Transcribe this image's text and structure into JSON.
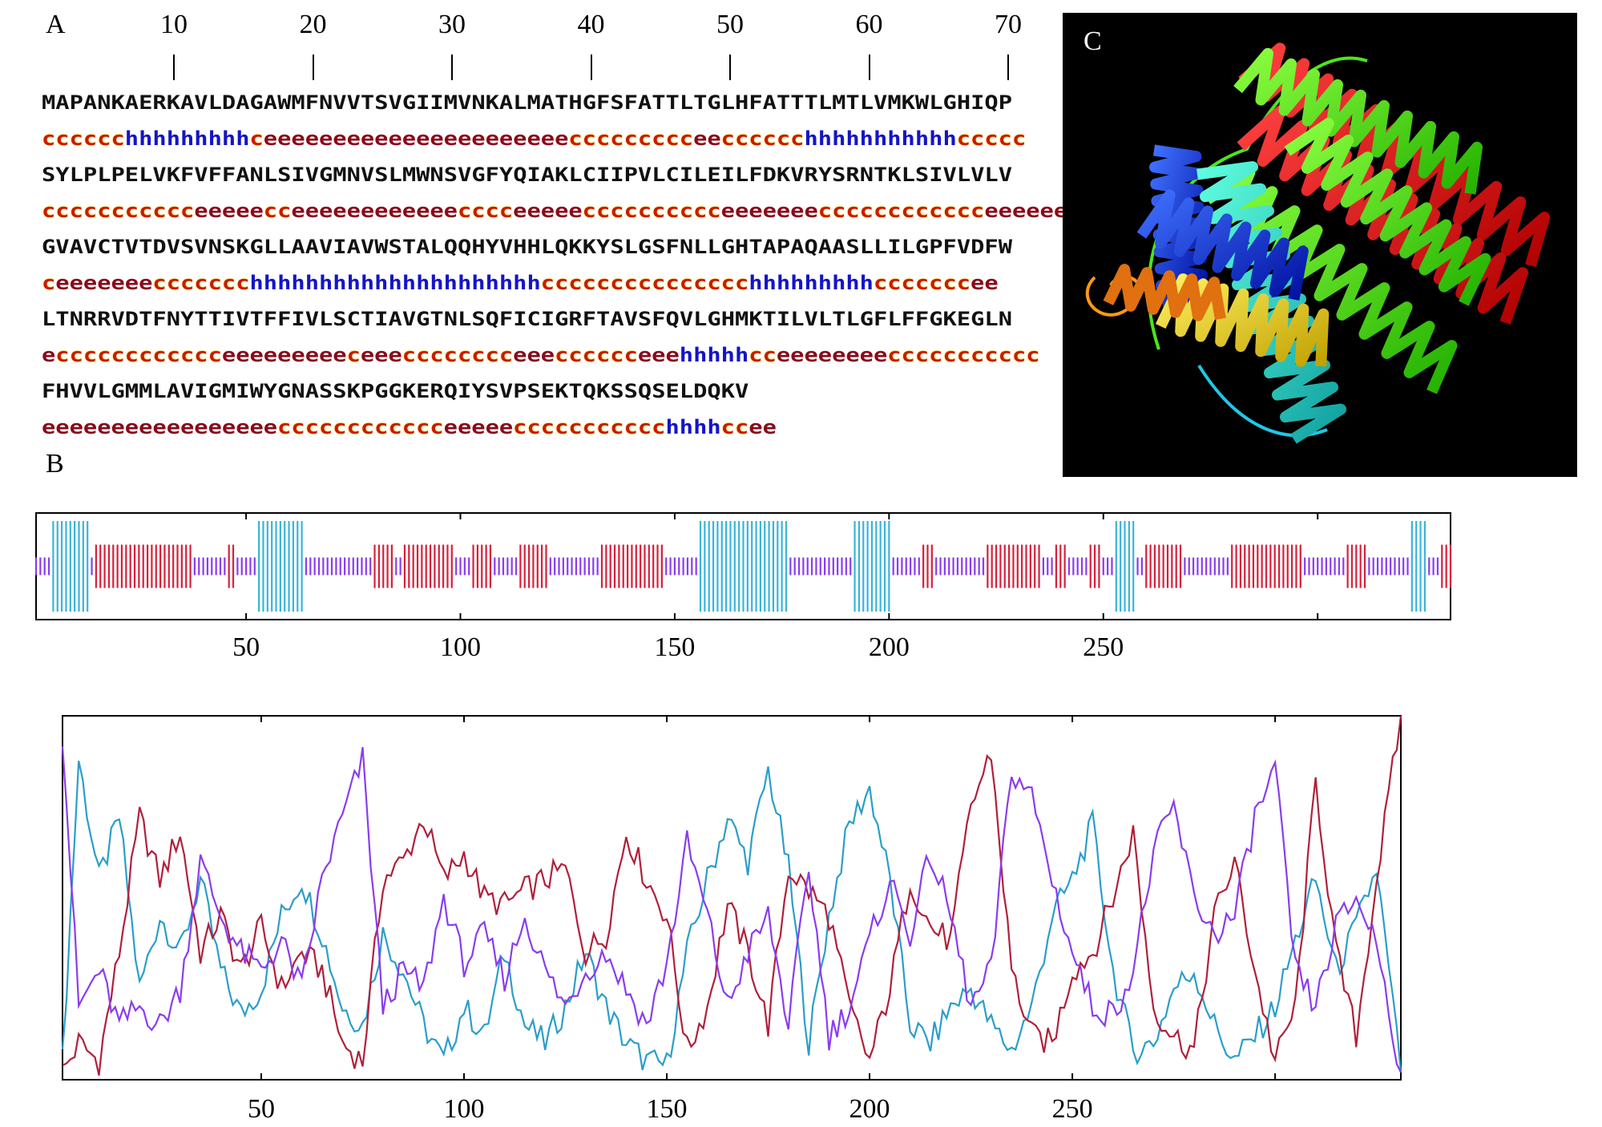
{
  "panels": {
    "a_label": "A",
    "b_label": "B",
    "c_label": "C"
  },
  "ruler": {
    "labels": [
      "10",
      "20",
      "30",
      "40",
      "50",
      "60",
      "70"
    ]
  },
  "sequence_block": {
    "rows": [
      {
        "seq": "MAPANKAERKAVLDAGAWMFNVVTSVGIIMVNKALMATHGFSFATTLTGLHFATTTLMTLVMKWLGHIQP",
        "ss": "cccccchhhhhhhhhceeeeeeeeeeeeeeeeeeeeeeccccccccceecccccchhhhhhhhhhhccccc"
      },
      {
        "seq": "SYLPLPELVKFVFFANLSIVGMNVSLMWNSVGFYQIAKLCIIPVLCILEILFDKVRYSRNTKLSIVLVLV",
        "ss": "ccccccccccceeeeecceeeeeeeeeeeecccceeeeecccccccccceeeeeeecccccccccccceeeeeee"
      },
      {
        "seq": "GVAVCTVTDVSVNSKGLLAAVIAVWSTALQQHYVHHLQKKYSLGSFNLLGHTAPAQAASLLILGPFVDFW",
        "ss": "ceeeeeeeccccccchhhhhhhhhhhhhhhhhhhhhccccccccccccccchhhhhhhhhcccccccee"
      },
      {
        "seq": "LTNRRVDTFNYTTIVTFFIVLSCTIAVGTNLSQFICIGRFTAVSFQVLGHMKTILVLTLGFLFFGKEGLN",
        "ss": "ecccccccccccceeeeeeeeeceeecccccccceeecccccceeehhhhhcceeeeeeeeccccccccccc"
      },
      {
        "seq": "FHVVLGMMLAVIGMIWYGNASSKPGGKERQIYSVPSEKTQKSSQSELDQKV",
        "ss": "eeeeeeeeeeeeeeeeecccccccccccceeeeeccccccccccchhhhccee"
      }
    ]
  },
  "bar_track": {
    "x_tick_labels": [
      "50",
      "100",
      "150",
      "200",
      "250"
    ]
  },
  "line_plot": {
    "x_tick_labels": [
      "50",
      "100",
      "150",
      "200",
      "250"
    ]
  },
  "chart_data": [
    {
      "type": "bar",
      "xlim": [
        1,
        331
      ],
      "x_ticks": [
        50,
        100,
        150,
        200,
        250,
        300
      ],
      "categories_meaning": "residue position",
      "colors": {
        "helix": "#3ab4d8",
        "strand": "#d6203a",
        "coil": "#8a3cf0"
      },
      "segments": [
        {
          "type": "coil",
          "start": 1,
          "end": 4
        },
        {
          "type": "helix",
          "start": 5,
          "end": 13
        },
        {
          "type": "coil",
          "start": 14,
          "end": 14
        },
        {
          "type": "strand",
          "start": 15,
          "end": 37
        },
        {
          "type": "coil",
          "start": 38,
          "end": 45
        },
        {
          "type": "strand",
          "start": 46,
          "end": 47
        },
        {
          "type": "coil",
          "start": 48,
          "end": 52
        },
        {
          "type": "helix",
          "start": 53,
          "end": 63
        },
        {
          "type": "coil",
          "start": 64,
          "end": 79
        },
        {
          "type": "strand",
          "start": 80,
          "end": 84
        },
        {
          "type": "coil",
          "start": 85,
          "end": 86
        },
        {
          "type": "strand",
          "start": 87,
          "end": 98
        },
        {
          "type": "coil",
          "start": 99,
          "end": 102
        },
        {
          "type": "strand",
          "start": 103,
          "end": 107
        },
        {
          "type": "coil",
          "start": 108,
          "end": 113
        },
        {
          "type": "strand",
          "start": 114,
          "end": 120
        },
        {
          "type": "coil",
          "start": 121,
          "end": 132
        },
        {
          "type": "strand",
          "start": 133,
          "end": 140
        },
        {
          "type": "strand",
          "start": 141,
          "end": 147
        },
        {
          "type": "coil",
          "start": 148,
          "end": 155
        },
        {
          "type": "helix",
          "start": 156,
          "end": 176
        },
        {
          "type": "coil",
          "start": 177,
          "end": 191
        },
        {
          "type": "helix",
          "start": 192,
          "end": 200
        },
        {
          "type": "coil",
          "start": 201,
          "end": 207
        },
        {
          "type": "strand",
          "start": 208,
          "end": 210
        },
        {
          "type": "coil",
          "start": 211,
          "end": 222
        },
        {
          "type": "strand",
          "start": 223,
          "end": 235
        },
        {
          "type": "coil",
          "start": 236,
          "end": 238
        },
        {
          "type": "strand",
          "start": 239,
          "end": 241
        },
        {
          "type": "coil",
          "start": 242,
          "end": 246
        },
        {
          "type": "strand",
          "start": 247,
          "end": 249
        },
        {
          "type": "coil",
          "start": 250,
          "end": 252
        },
        {
          "type": "helix",
          "start": 253,
          "end": 257
        },
        {
          "type": "coil",
          "start": 258,
          "end": 259
        },
        {
          "type": "strand",
          "start": 260,
          "end": 268
        },
        {
          "type": "coil",
          "start": 269,
          "end": 279
        },
        {
          "type": "strand",
          "start": 280,
          "end": 296
        },
        {
          "type": "coil",
          "start": 297,
          "end": 306
        },
        {
          "type": "strand",
          "start": 307,
          "end": 311
        },
        {
          "type": "coil",
          "start": 312,
          "end": 321
        },
        {
          "type": "helix",
          "start": 322,
          "end": 325
        },
        {
          "type": "coil",
          "start": 326,
          "end": 328
        },
        {
          "type": "strand",
          "start": 329,
          "end": 331
        }
      ]
    },
    {
      "type": "line",
      "xlim": [
        1,
        331
      ],
      "ylim": [
        0,
        1
      ],
      "x_ticks": [
        50,
        100,
        150,
        200,
        250,
        300
      ],
      "series": [
        {
          "color": "#2a9ec9",
          "x": [
            1,
            5,
            10,
            15,
            20,
            25,
            30,
            35,
            40,
            45,
            50,
            55,
            60,
            65,
            70,
            75,
            80,
            85,
            90,
            95,
            100,
            105,
            110,
            115,
            120,
            125,
            130,
            135,
            140,
            145,
            150,
            155,
            160,
            165,
            170,
            175,
            180,
            185,
            190,
            195,
            200,
            205,
            210,
            215,
            220,
            225,
            230,
            235,
            240,
            245,
            250,
            255,
            260,
            265,
            270,
            275,
            280,
            285,
            290,
            295,
            300,
            305,
            310,
            315,
            320,
            325,
            331
          ],
          "values": [
            0.05,
            0.88,
            0.55,
            0.72,
            0.25,
            0.45,
            0.35,
            0.55,
            0.3,
            0.18,
            0.25,
            0.45,
            0.55,
            0.4,
            0.2,
            0.15,
            0.4,
            0.3,
            0.15,
            0.05,
            0.2,
            0.12,
            0.35,
            0.15,
            0.1,
            0.2,
            0.35,
            0.2,
            0.1,
            0.05,
            0.04,
            0.35,
            0.55,
            0.72,
            0.6,
            0.85,
            0.58,
            0.1,
            0.45,
            0.7,
            0.8,
            0.55,
            0.15,
            0.1,
            0.2,
            0.25,
            0.15,
            0.08,
            0.2,
            0.45,
            0.55,
            0.7,
            0.3,
            0.08,
            0.1,
            0.25,
            0.3,
            0.15,
            0.05,
            0.12,
            0.2,
            0.38,
            0.55,
            0.3,
            0.42,
            0.58,
            0.02
          ]
        },
        {
          "color": "#b0203a",
          "x": [
            1,
            5,
            10,
            15,
            20,
            25,
            30,
            35,
            40,
            45,
            50,
            55,
            60,
            65,
            70,
            75,
            80,
            85,
            90,
            95,
            100,
            105,
            110,
            115,
            120,
            125,
            130,
            135,
            140,
            145,
            150,
            155,
            160,
            165,
            170,
            175,
            180,
            185,
            190,
            195,
            200,
            205,
            210,
            215,
            220,
            225,
            230,
            235,
            240,
            245,
            250,
            255,
            260,
            265,
            270,
            275,
            280,
            285,
            290,
            295,
            300,
            305,
            310,
            315,
            320,
            325,
            331
          ],
          "values": [
            0.02,
            0.1,
            0.05,
            0.35,
            0.72,
            0.55,
            0.68,
            0.35,
            0.45,
            0.3,
            0.42,
            0.25,
            0.35,
            0.3,
            0.1,
            0.05,
            0.55,
            0.6,
            0.72,
            0.55,
            0.62,
            0.5,
            0.48,
            0.52,
            0.55,
            0.58,
            0.35,
            0.4,
            0.68,
            0.55,
            0.45,
            0.08,
            0.2,
            0.48,
            0.35,
            0.15,
            0.58,
            0.52,
            0.45,
            0.2,
            0.05,
            0.25,
            0.55,
            0.42,
            0.38,
            0.75,
            0.9,
            0.3,
            0.12,
            0.1,
            0.3,
            0.35,
            0.5,
            0.68,
            0.2,
            0.12,
            0.08,
            0.45,
            0.6,
            0.3,
            0.05,
            0.2,
            0.82,
            0.35,
            0.12,
            0.55,
            1.0
          ]
        },
        {
          "color": "#8a3cf0",
          "x": [
            1,
            5,
            10,
            15,
            20,
            25,
            30,
            35,
            40,
            45,
            50,
            55,
            60,
            65,
            70,
            75,
            80,
            85,
            90,
            95,
            100,
            105,
            110,
            115,
            120,
            125,
            130,
            135,
            140,
            145,
            150,
            155,
            160,
            165,
            170,
            175,
            180,
            185,
            190,
            195,
            200,
            205,
            210,
            215,
            220,
            225,
            230,
            235,
            240,
            245,
            250,
            255,
            260,
            265,
            270,
            275,
            280,
            285,
            290,
            295,
            300,
            305,
            310,
            315,
            320,
            325,
            331
          ],
          "values": [
            0.95,
            0.2,
            0.3,
            0.15,
            0.2,
            0.15,
            0.25,
            0.6,
            0.45,
            0.35,
            0.3,
            0.38,
            0.25,
            0.55,
            0.72,
            0.88,
            0.2,
            0.3,
            0.25,
            0.5,
            0.32,
            0.4,
            0.28,
            0.45,
            0.3,
            0.2,
            0.3,
            0.35,
            0.25,
            0.15,
            0.32,
            0.65,
            0.45,
            0.2,
            0.35,
            0.45,
            0.15,
            0.58,
            0.12,
            0.2,
            0.38,
            0.55,
            0.4,
            0.62,
            0.45,
            0.2,
            0.3,
            0.85,
            0.78,
            0.55,
            0.35,
            0.2,
            0.18,
            0.3,
            0.62,
            0.75,
            0.5,
            0.4,
            0.45,
            0.72,
            0.85,
            0.3,
            0.2,
            0.42,
            0.5,
            0.38,
            0.02
          ]
        }
      ]
    }
  ],
  "structure_image": {
    "background": "#000000",
    "description_colors": [
      "#ff2020",
      "#4de61a",
      "#20e6c8",
      "#1440ff",
      "#ffe41a",
      "#ff9a14"
    ]
  }
}
